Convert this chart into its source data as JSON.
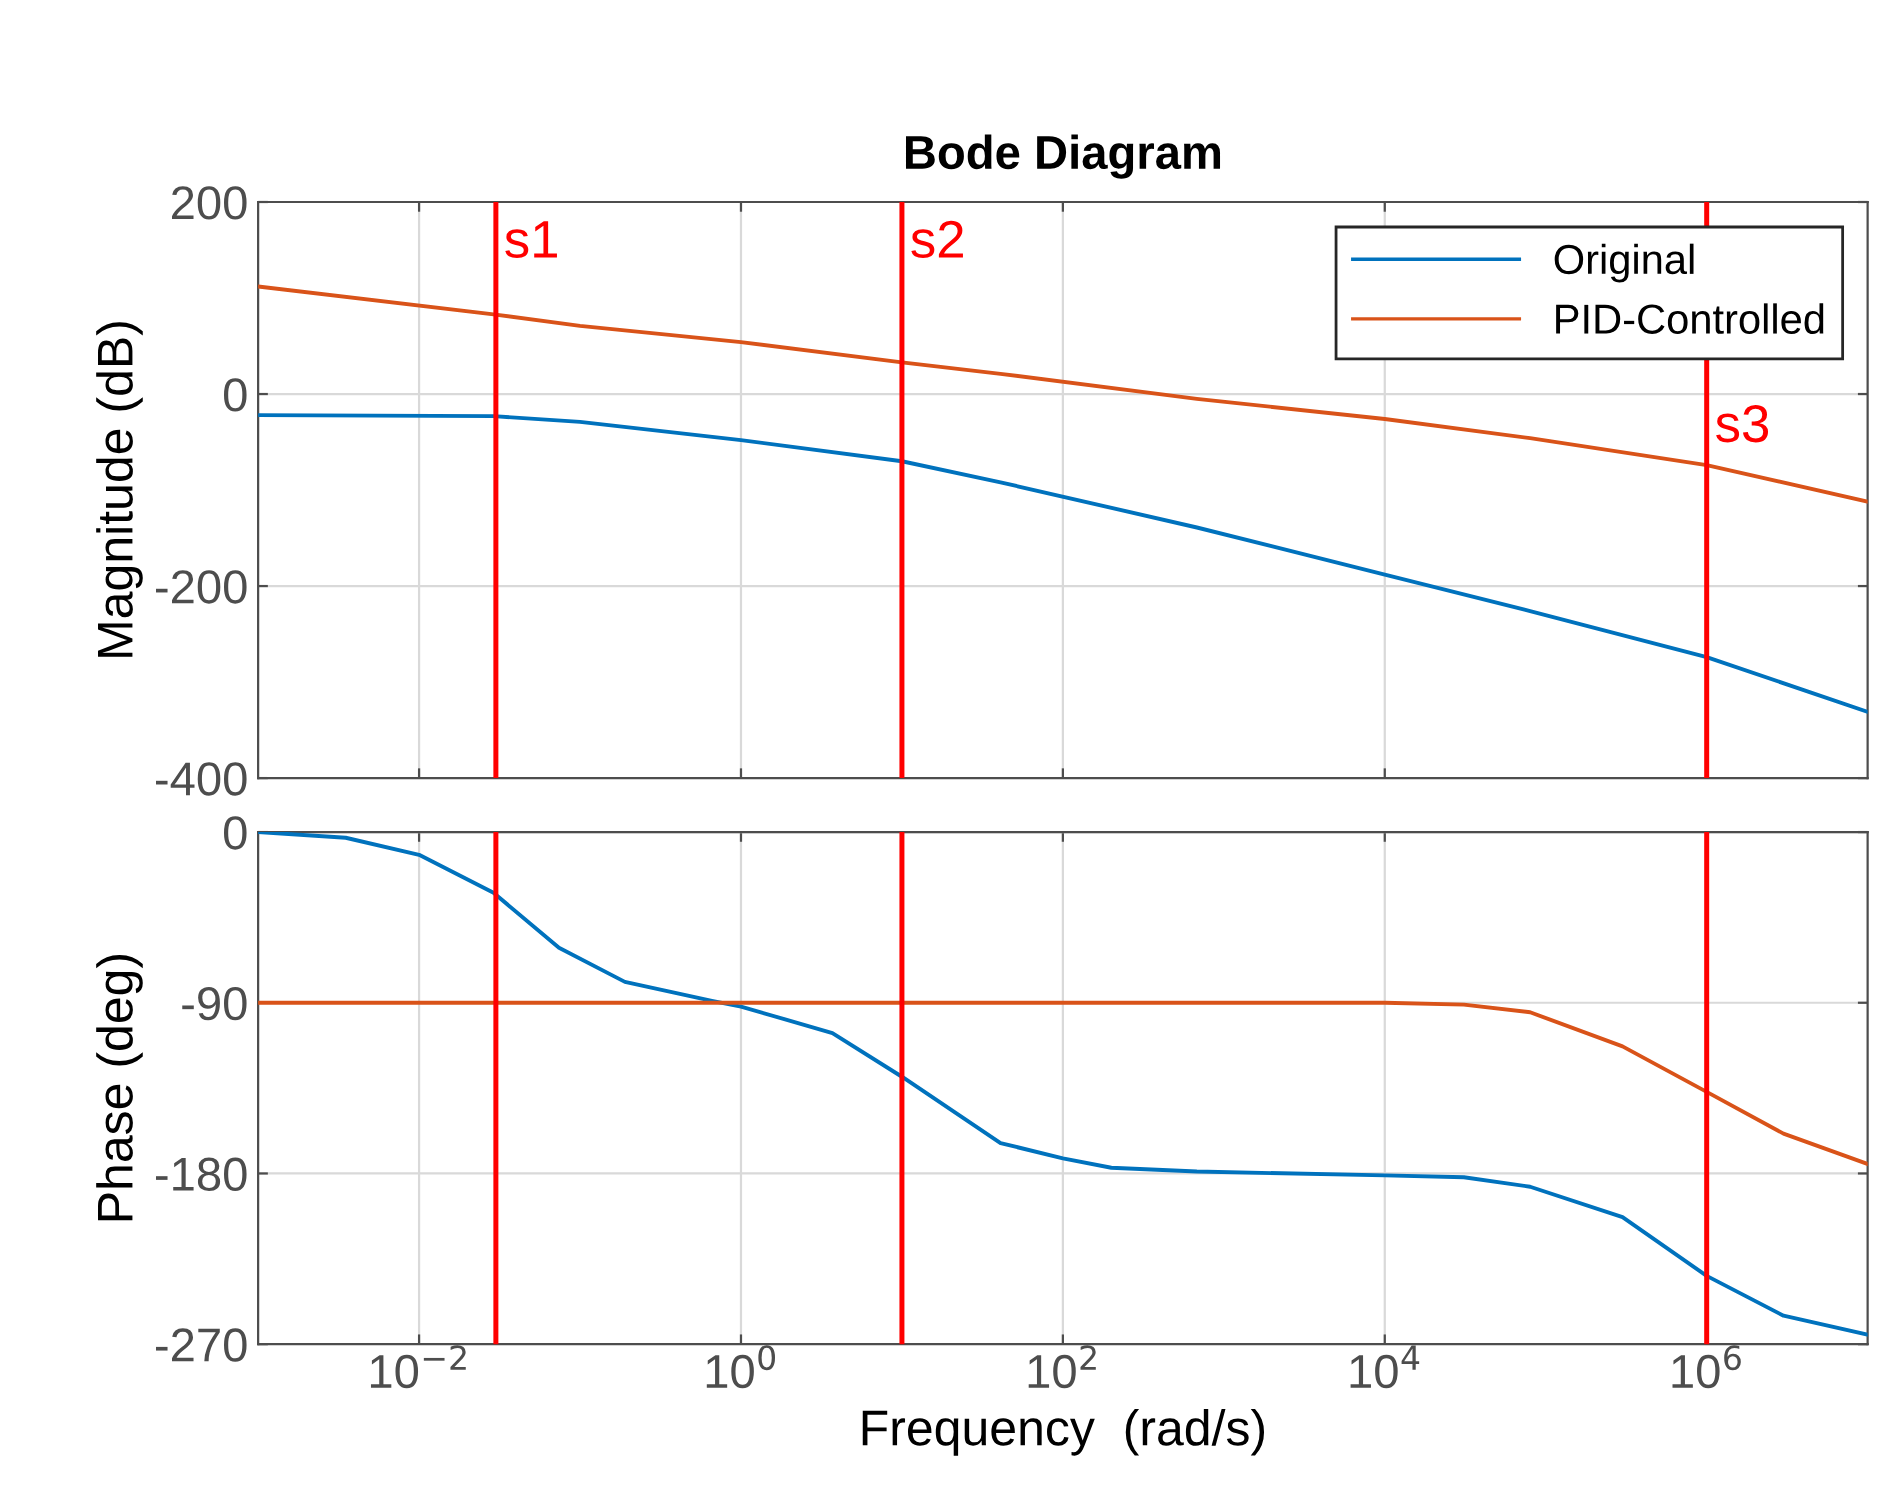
{
  "chart_data": [
    {
      "type": "line",
      "title": "Bode Diagram",
      "ylabel": "Magnitude (dB)",
      "log": "x",
      "x": [
        0.001,
        0.029,
        0.1,
        1,
        10,
        41,
        680,
        10000,
        80000,
        1000000,
        10000000
      ],
      "series": [
        {
          "name": "Original",
          "color": "#0072bd",
          "values": [
            -22,
            -23,
            -29,
            -48,
            -70,
            -92,
            -139,
            -188,
            -226,
            -274,
            -331
          ]
        },
        {
          "name": "PID-Controlled",
          "color": "#d95319",
          "values": [
            112,
            83,
            71,
            54,
            33,
            21,
            -5,
            -26,
            -46,
            -74,
            -112
          ]
        }
      ],
      "xlim": [
        0.001,
        10000000
      ],
      "ylim": [
        -400,
        200
      ],
      "yticks": [
        -400,
        -200,
        0,
        200
      ],
      "tick_labels": "y",
      "grid": true,
      "legend": "top right",
      "ref_lines": [
        {
          "axis": "x",
          "value": 0.03,
          "label": "s1",
          "color": "#ff0000"
        },
        {
          "axis": "x",
          "value": 10,
          "label": "s2",
          "color": "#ff0000"
        },
        {
          "axis": "x",
          "value": 1000000,
          "label": "s3",
          "color": "#ff0000"
        }
      ]
    },
    {
      "type": "line",
      "ylabel": "Phase (deg)",
      "xlabel": "Frequency  (rad/s)",
      "log": "x",
      "x": [
        0.001,
        0.0035,
        0.01,
        0.029,
        0.074,
        0.19,
        0.66,
        1,
        3.7,
        10,
        41,
        100,
        200,
        680,
        10000,
        31000,
        80000,
        300000,
        1000000,
        3000000,
        10000000
      ],
      "series": [
        {
          "color": "#0072bd",
          "values": [
            0,
            -3,
            -12,
            -32,
            -61,
            -79,
            -89,
            -92,
            -106,
            -129,
            -164,
            -172,
            -177,
            -179,
            -181,
            -182,
            -187,
            -203,
            -234,
            -255,
            -265
          ]
        },
        {
          "color": "#d95319",
          "values": [
            -90,
            -90,
            -90,
            -90,
            -90,
            -90,
            -90,
            -90,
            -90,
            -90,
            -90,
            -90,
            -90,
            -90,
            -90,
            -91,
            -95,
            -113,
            -137,
            -159,
            -175
          ]
        }
      ],
      "xlim": [
        0.001,
        10000000
      ],
      "xticks": [
        {
          "value": 0.01,
          "label": "10$^{−2}$"
        },
        {
          "value": 1,
          "label": "10$^{0}$"
        },
        {
          "value": 100,
          "label": "10$^{2}$"
        },
        {
          "value": 10000,
          "label": "10$^{4}$"
        },
        {
          "value": 1000000,
          "label": "10$^{6}$"
        }
      ],
      "ylim": [
        -270,
        0
      ],
      "yticks": [
        -270,
        -180,
        -90,
        0
      ],
      "grid": true,
      "ref_lines": [
        {
          "axis": "x",
          "value": 0.03,
          "color": "#ff0000"
        },
        {
          "axis": "x",
          "value": 10,
          "color": "#ff0000"
        },
        {
          "axis": "x",
          "value": 1000000,
          "color": "#ff0000"
        }
      ]
    }
  ]
}
